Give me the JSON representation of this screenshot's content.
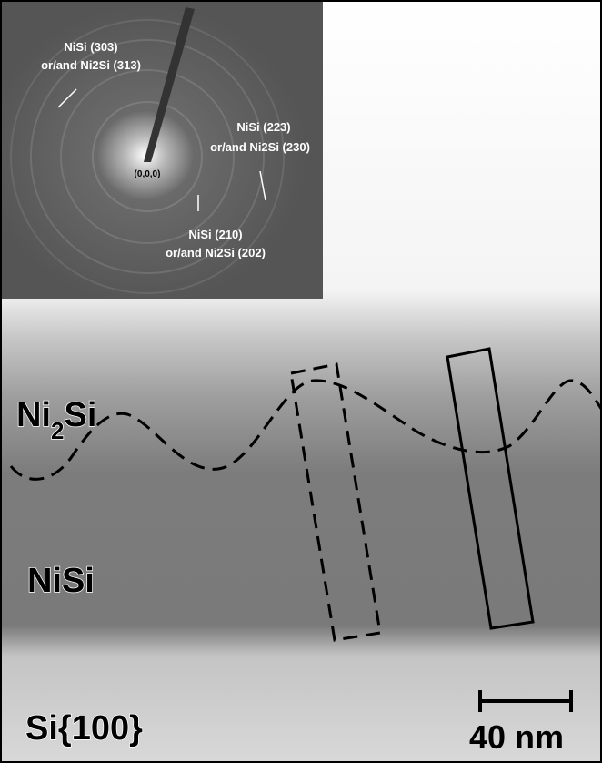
{
  "inset": {
    "center_label": "(0,0,0)",
    "annotations": [
      {
        "lines": [
          "NiSi (303)",
          "or/and Ni2Si (313)"
        ]
      },
      {
        "lines": [
          "NiSi (223)",
          "or/and Ni2Si (230)"
        ]
      },
      {
        "lines": [
          "NiSi (210)",
          "or/and Ni2Si (202)"
        ]
      }
    ]
  },
  "layers": [
    {
      "label": {
        "main": "Ni",
        "sub": "2",
        "tail": "Si"
      }
    },
    {
      "label": {
        "main": "NiSi"
      }
    },
    {
      "label": {
        "main": "Si{100}"
      }
    }
  ],
  "scale_bar": {
    "label": "40 nm"
  }
}
